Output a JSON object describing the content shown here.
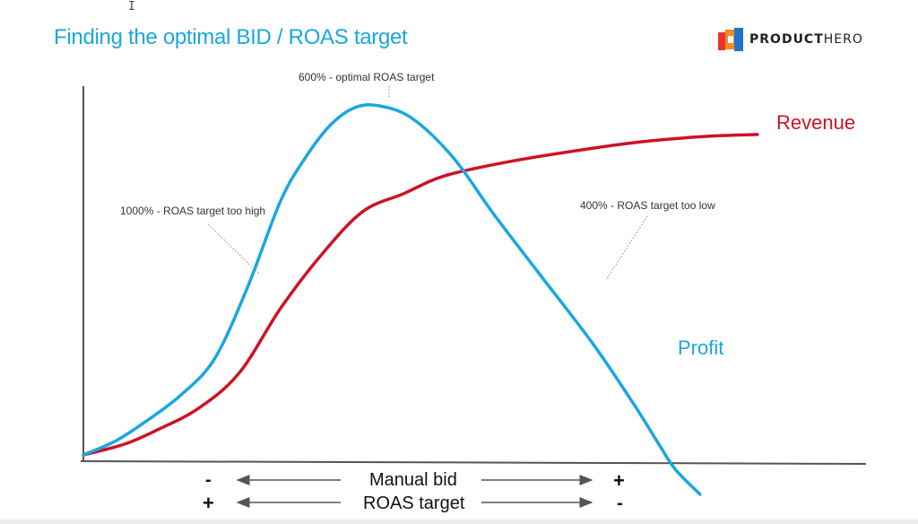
{
  "title": "Finding the optimal BID / ROAS target",
  "logo": {
    "bold": "PRODUCT",
    "light": "HERO",
    "icon": "producthero-logo-icon"
  },
  "cursor_glyph": "I",
  "colors": {
    "title": "#1aa7e0",
    "profit": "#1aa7e0",
    "revenue": "#cc1325",
    "axis": "#555555"
  },
  "chart_data": {
    "type": "line",
    "title": "Finding the optimal BID / ROAS target",
    "xlabel": "Manual bid",
    "xlabel2": "ROAS target",
    "ylabel": "",
    "axis_ticks": {
      "manual_bid": {
        "left": "-",
        "right": "+"
      },
      "roas_target": {
        "left": "+",
        "right": "-"
      }
    },
    "grid": false,
    "series": [
      {
        "name": "Revenue",
        "color": "#cc1325",
        "points": [
          [
            0,
            0.01
          ],
          [
            0.05,
            0.04
          ],
          [
            0.09,
            0.08
          ],
          [
            0.14,
            0.14
          ],
          [
            0.19,
            0.24
          ],
          [
            0.24,
            0.42
          ],
          [
            0.29,
            0.57
          ],
          [
            0.34,
            0.69
          ],
          [
            0.39,
            0.74
          ],
          [
            0.44,
            0.79
          ],
          [
            0.52,
            0.83
          ],
          [
            0.6,
            0.86
          ],
          [
            0.68,
            0.885
          ],
          [
            0.76,
            0.9
          ],
          [
            0.82,
            0.905
          ]
        ]
      },
      {
        "name": "Profit",
        "color": "#1aa7e0",
        "points": [
          [
            0,
            0.01
          ],
          [
            0.04,
            0.05
          ],
          [
            0.08,
            0.11
          ],
          [
            0.12,
            0.18
          ],
          [
            0.16,
            0.28
          ],
          [
            0.2,
            0.48
          ],
          [
            0.24,
            0.72
          ],
          [
            0.27,
            0.84
          ],
          [
            0.3,
            0.93
          ],
          [
            0.33,
            0.98
          ],
          [
            0.36,
            0.985
          ],
          [
            0.4,
            0.95
          ],
          [
            0.45,
            0.84
          ],
          [
            0.5,
            0.68
          ],
          [
            0.56,
            0.5
          ],
          [
            0.62,
            0.32
          ],
          [
            0.67,
            0.15
          ],
          [
            0.7,
            0.04
          ],
          [
            0.72,
            -0.03
          ],
          [
            0.75,
            -0.1
          ]
        ]
      }
    ],
    "annotations": [
      {
        "text": "1000% - ROAS target too high",
        "series": "Profit",
        "x": 0.2
      },
      {
        "text": "600% - optimal ROAS target",
        "series": "Profit",
        "x": 0.345
      },
      {
        "text": "400% - ROAS target too low",
        "series": "Profit",
        "x": 0.56
      }
    ]
  }
}
